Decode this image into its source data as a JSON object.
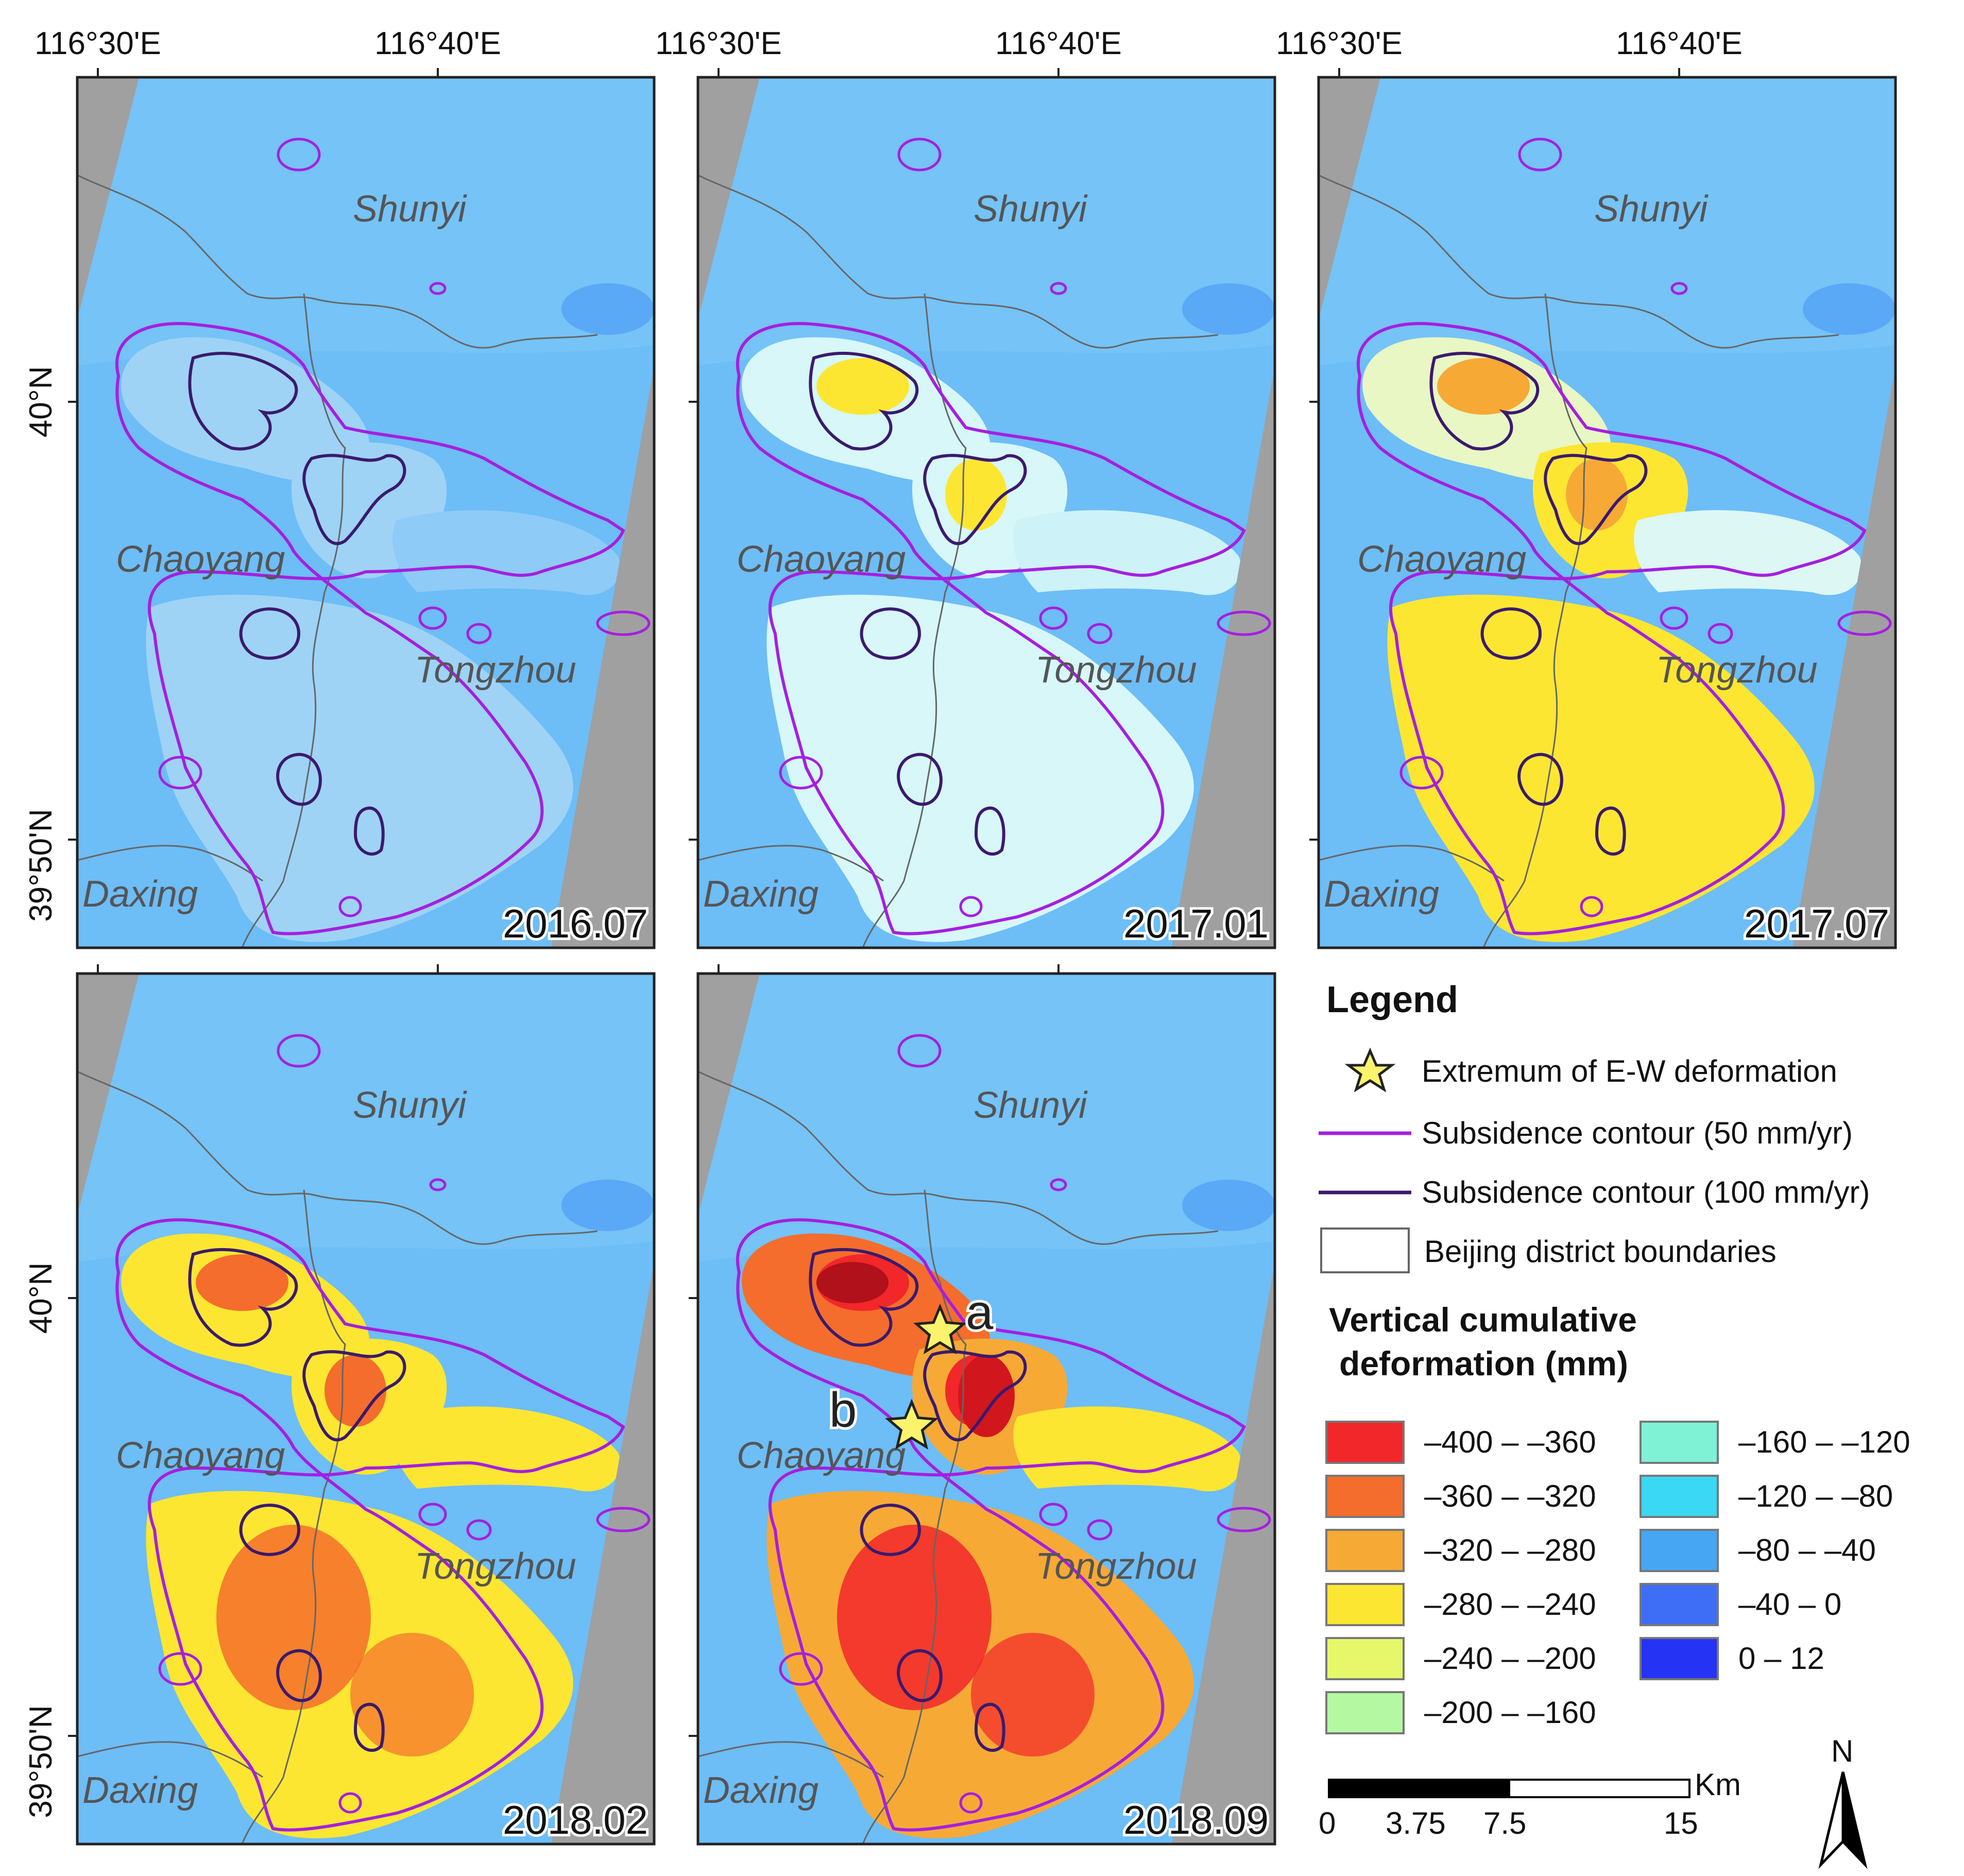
{
  "lon_labels": [
    "116°30'E",
    "116°40'E"
  ],
  "lat_labels": [
    "40°N",
    "39°50'N"
  ],
  "districts": {
    "shunyi": "Shunyi",
    "chaoyang": "Chaoyang",
    "tongzhou": "Tongzhou",
    "daxing": "Daxing"
  },
  "panels": [
    {
      "date": "2016.07",
      "stage": 0
    },
    {
      "date": "2017.01",
      "stage": 1
    },
    {
      "date": "2017.07",
      "stage": 2
    },
    {
      "date": "2018.02",
      "stage": 3
    },
    {
      "date": "2018.09",
      "stage": 4
    }
  ],
  "points": [
    "a",
    "b"
  ],
  "legend": {
    "title": "Legend",
    "star": "Extremum of E-W deformation",
    "contour50": "Subsidence contour (50 mm/yr)",
    "contour100": "Subsidence contour (100 mm/yr)",
    "boundaries": "Beijing district boundaries",
    "deformation_title_1": "Vertical cumulative",
    "deformation_title_2": "deformation  (mm)",
    "classes": [
      {
        "label": "–400 – –360",
        "color": "#f2272a"
      },
      {
        "label": "–360 – –320",
        "color": "#f46d2c"
      },
      {
        "label": "–320 – –280",
        "color": "#f7a936"
      },
      {
        "label": "–280 – –240",
        "color": "#fde632"
      },
      {
        "label": "–240 – –200",
        "color": "#e6f76a"
      },
      {
        "label": "–200 – –160",
        "color": "#b4f9a2"
      },
      {
        "label": "–160 – –120",
        "color": "#7ff2d6"
      },
      {
        "label": "–120 – –80",
        "color": "#3ad8f4"
      },
      {
        "label": "–80 – –40",
        "color": "#46a6f4"
      },
      {
        "label": "–40 – 0",
        "color": "#3d6ef5"
      },
      {
        "label": "0 – 12",
        "color": "#2533f4"
      }
    ],
    "contour50_color": "#a51fe0",
    "contour100_color": "#3b1a6e",
    "scale_unit": "Km",
    "scale_ticks": [
      "0",
      "3.75",
      "7.5",
      "15"
    ],
    "north": "N"
  }
}
